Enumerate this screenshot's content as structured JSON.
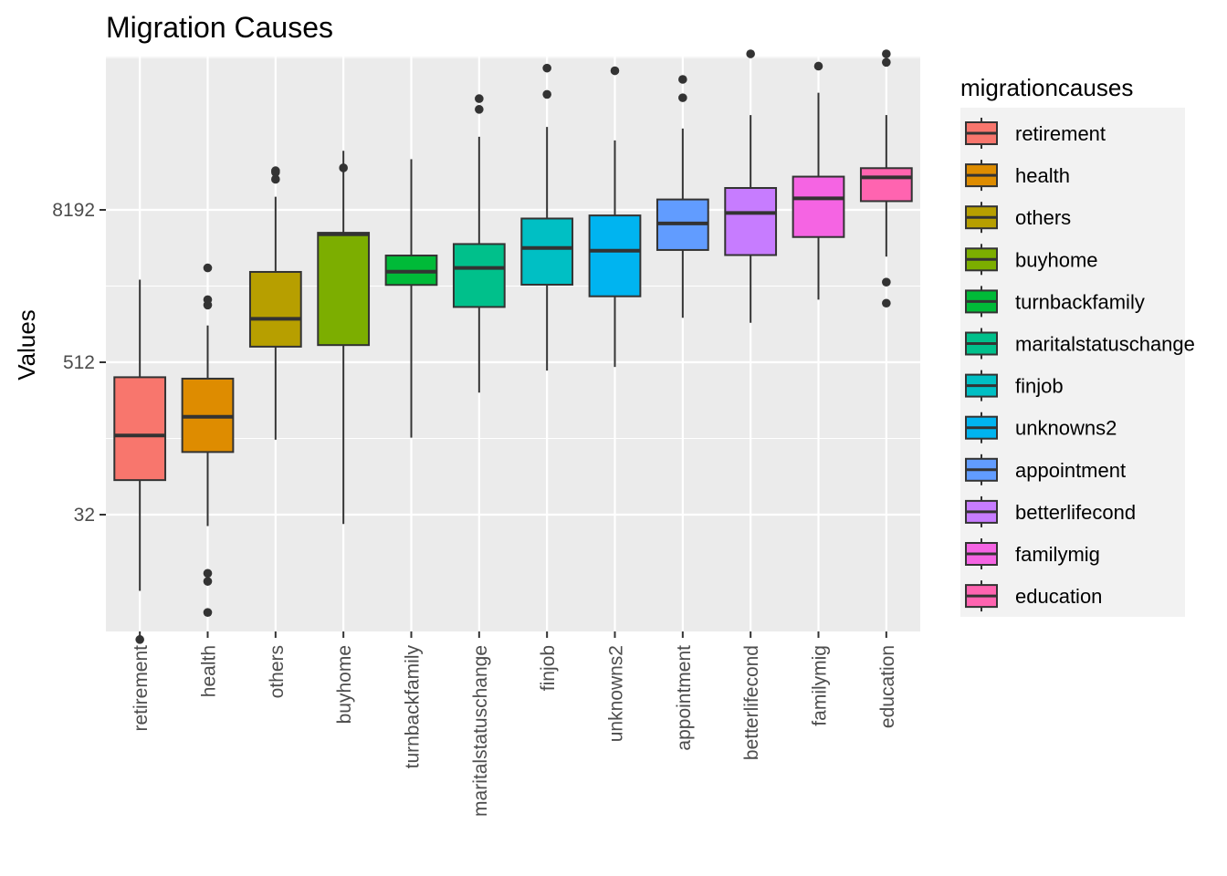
{
  "chart_data": {
    "type": "box",
    "title": "Migration Causes",
    "xlabel": "",
    "ylabel": "Values",
    "y_scale": "log2",
    "y_ticks": [
      32,
      512,
      8192
    ],
    "ylim": [
      3,
      100000
    ],
    "grid": true,
    "legend": {
      "title": "migrationcauses",
      "position": "right"
    },
    "categories": [
      "retirement",
      "health",
      "others",
      "buyhome",
      "turnbackfamily",
      "maritalstatuschange",
      "finjob",
      "unknowns2",
      "appointment",
      "betterlifecond",
      "familymig",
      "education"
    ],
    "colors": [
      "#F8766D",
      "#DE8C00",
      "#B79F00",
      "#7CAE00",
      "#00BA38",
      "#00C08B",
      "#00BFC4",
      "#00B4F0",
      "#619CFF",
      "#C77CFF",
      "#F564E3",
      "#FF64B0"
    ],
    "boxes": [
      {
        "category": "retirement",
        "whisker_low": 8,
        "q1": 60,
        "median": 135,
        "q3": 390,
        "whisker_high": 2300,
        "outliers": [
          3.3
        ]
      },
      {
        "category": "health",
        "whisker_low": 26,
        "q1": 100,
        "median": 190,
        "q3": 380,
        "whisker_high": 1000,
        "outliers": [
          5.4,
          9.5,
          11,
          1450,
          1600,
          2850
        ]
      },
      {
        "category": "others",
        "whisker_low": 125,
        "q1": 680,
        "median": 1130,
        "q3": 2650,
        "whisker_high": 10400,
        "outliers": [
          14300,
          16200,
          16700
        ]
      },
      {
        "category": "buyhome",
        "whisker_low": 27,
        "q1": 700,
        "median": 5250,
        "q3": 5400,
        "whisker_high": 24000,
        "outliers": [
          17600
        ]
      },
      {
        "category": "turnbackfamily",
        "whisker_low": 130,
        "q1": 2090,
        "median": 2660,
        "q3": 3570,
        "whisker_high": 20600,
        "outliers": []
      },
      {
        "category": "maritalstatuschange",
        "whisker_low": 295,
        "q1": 1400,
        "median": 2850,
        "q3": 4400,
        "whisker_high": 31000,
        "outliers": [
          51000,
          62000
        ]
      },
      {
        "category": "finjob",
        "whisker_low": 440,
        "q1": 2100,
        "median": 4100,
        "q3": 7000,
        "whisker_high": 37000,
        "outliers": [
          67000,
          108000
        ]
      },
      {
        "category": "unknowns2",
        "whisker_low": 470,
        "q1": 1700,
        "median": 3900,
        "q3": 7400,
        "whisker_high": 29000,
        "outliers": [
          103000
        ]
      },
      {
        "category": "appointment",
        "whisker_low": 1150,
        "q1": 3950,
        "median": 6400,
        "q3": 9900,
        "whisker_high": 36000,
        "outliers": [
          63000,
          88000
        ]
      },
      {
        "category": "betterlifecond",
        "whisker_low": 1050,
        "q1": 3600,
        "median": 7750,
        "q3": 12200,
        "whisker_high": 46000,
        "outliers": [
          140000
        ]
      },
      {
        "category": "familymig",
        "whisker_low": 1600,
        "q1": 5000,
        "median": 10100,
        "q3": 15000,
        "whisker_high": 69000,
        "outliers": [
          112000
        ]
      },
      {
        "category": "education",
        "whisker_low": 3500,
        "q1": 9600,
        "median": 14800,
        "q3": 17500,
        "whisker_high": 46000,
        "outliers": [
          1500,
          2200,
          120000,
          140000
        ]
      }
    ]
  }
}
